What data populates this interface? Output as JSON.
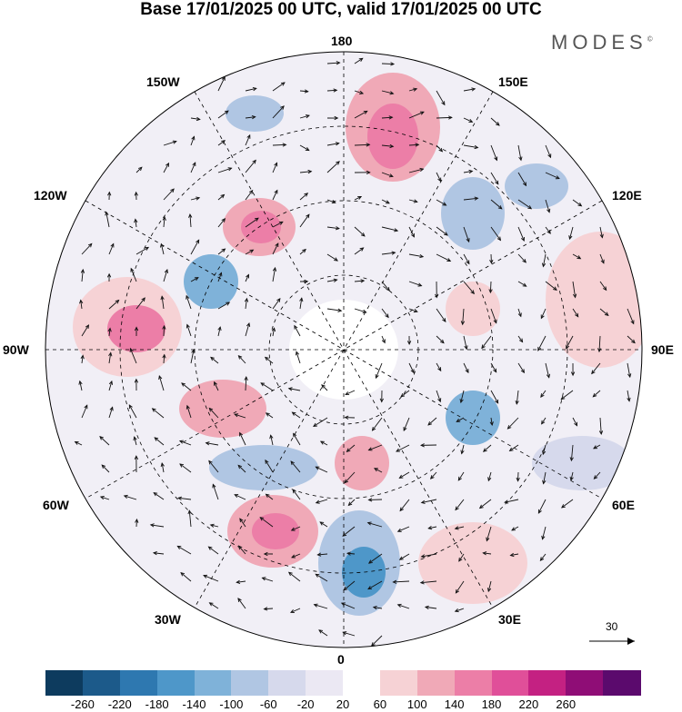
{
  "title": "Base 17/01/2025 00 UTC, valid 17/01/2025 00 UTC",
  "brand": "MODES",
  "brand_mark": "©",
  "longitude_labels": {
    "top": "180",
    "bottom": "0",
    "left": "90W",
    "right": "90E",
    "upper_left_1": "150W",
    "upper_left_2": "120W",
    "lower_left_1": "60W",
    "lower_left_2": "30W",
    "upper_right_1": "150E",
    "upper_right_2": "120E",
    "lower_right_1": "60E",
    "lower_right_2": "30E"
  },
  "reference_vector_label": "30",
  "colorbar": {
    "ticks": [
      "-260",
      "-220",
      "-180",
      "-140",
      "-100",
      "-60",
      "-20",
      "20",
      "60",
      "100",
      "140",
      "180",
      "220",
      "260"
    ],
    "colors": [
      "#0d3b5e",
      "#1c5a8a",
      "#2e78b0",
      "#4e97c9",
      "#7fb2d9",
      "#b0c6e3",
      "#d6d9ec",
      "#ebe8f3",
      "#ffffff",
      "#f6d2d5",
      "#f0a9b7",
      "#ec7ea7",
      "#e04f99",
      "#c42182",
      "#8f0d76",
      "#5b0a6d"
    ]
  }
}
